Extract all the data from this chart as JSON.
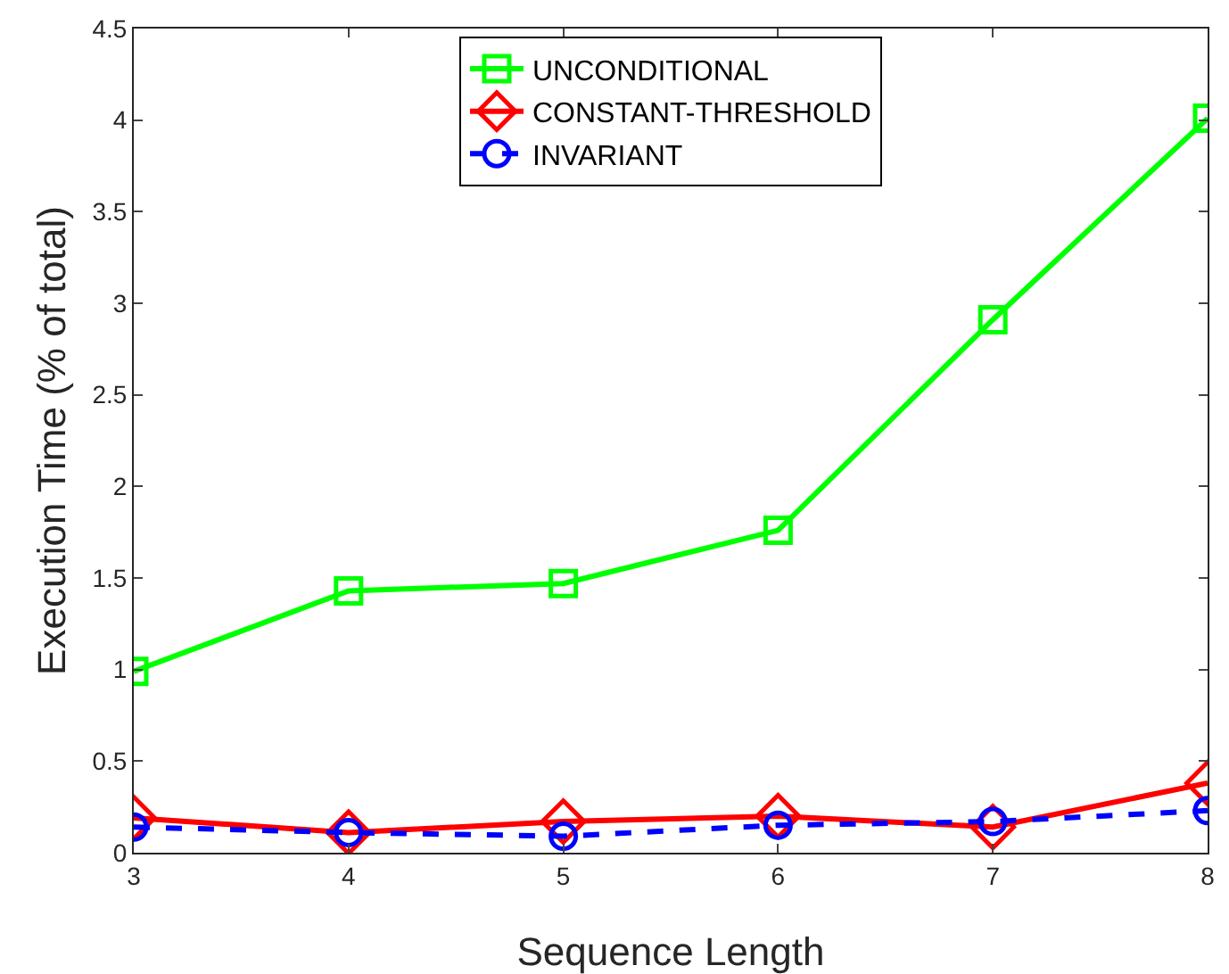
{
  "chart_data": {
    "type": "line",
    "xlabel": "Sequence Length",
    "ylabel": "Execution Time (% of total)",
    "x": [
      3,
      4,
      5,
      6,
      7,
      8
    ],
    "xlim": [
      3,
      8
    ],
    "xticks": [
      3,
      4,
      5,
      6,
      7,
      8
    ],
    "ylim": [
      0,
      4.5
    ],
    "yticks": [
      0,
      0.5,
      1,
      1.5,
      2,
      2.5,
      3,
      3.5,
      4,
      4.5
    ],
    "grid": false,
    "legend": "top",
    "series": [
      {
        "name": "UNCONDITIONAL",
        "color": "#00ff00",
        "marker": "square",
        "line_style": "solid",
        "values": [
          0.99,
          1.43,
          1.47,
          1.76,
          2.91,
          4.01
        ]
      },
      {
        "name": "CONSTANT-THRESHOLD",
        "color": "#ff0000",
        "marker": "diamond",
        "line_style": "solid",
        "values": [
          0.19,
          0.11,
          0.17,
          0.2,
          0.14,
          0.38
        ]
      },
      {
        "name": "INVARIANT",
        "color": "#0000ff",
        "marker": "circle",
        "line_style": "dashed",
        "values": [
          0.14,
          0.11,
          0.09,
          0.15,
          0.17,
          0.23
        ]
      }
    ]
  }
}
